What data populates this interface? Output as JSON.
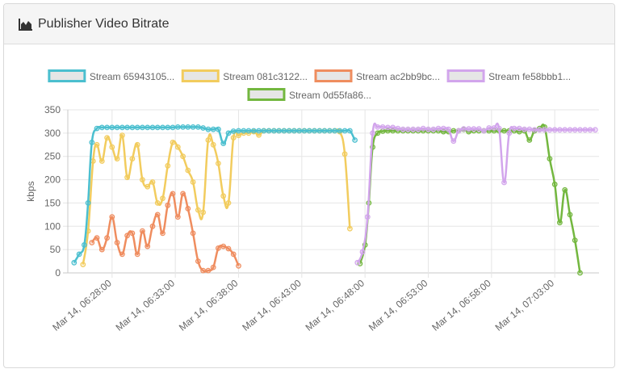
{
  "panel": {
    "title": "Publisher Video Bitrate",
    "icon": "area-chart-icon"
  },
  "chart_data": {
    "type": "line",
    "ylabel": "kbps",
    "ylim": [
      0,
      350
    ],
    "yticks": [
      0,
      50,
      100,
      150,
      200,
      250,
      300,
      350
    ],
    "xlim_minutes": [
      24.5,
      66.5
    ],
    "xticks": [
      {
        "label": "Mar 14, 06:28:00",
        "minute": 28
      },
      {
        "label": "Mar 14, 06:33:00",
        "minute": 33
      },
      {
        "label": "Mar 14, 06:38:00",
        "minute": 38
      },
      {
        "label": "Mar 14, 06:43:00",
        "minute": 43
      },
      {
        "label": "Mar 14, 06:48:00",
        "minute": 48
      },
      {
        "label": "Mar 14, 06:53:00",
        "minute": 53
      },
      {
        "label": "Mar 14, 06:58:00",
        "minute": 58
      },
      {
        "label": "Mar 14, 07:03:00",
        "minute": 63
      }
    ],
    "grid": true,
    "legend_position": "top",
    "series": [
      {
        "name": "Stream 65943105...",
        "color": "#4bbfcf",
        "points": [
          [
            25.0,
            22
          ],
          [
            25.4,
            40
          ],
          [
            25.8,
            60
          ],
          [
            26.1,
            150
          ],
          [
            26.4,
            280
          ],
          [
            26.8,
            310
          ],
          [
            27.2,
            312
          ],
          [
            27.6,
            312
          ],
          [
            28.0,
            312
          ],
          [
            28.4,
            312
          ],
          [
            28.8,
            312
          ],
          [
            29.2,
            312
          ],
          [
            29.6,
            312
          ],
          [
            30.0,
            312
          ],
          [
            30.4,
            312
          ],
          [
            30.8,
            312
          ],
          [
            31.2,
            312
          ],
          [
            31.6,
            312
          ],
          [
            32.0,
            312
          ],
          [
            32.4,
            312
          ],
          [
            32.8,
            312
          ],
          [
            33.2,
            313
          ],
          [
            33.6,
            313
          ],
          [
            34.0,
            313
          ],
          [
            34.4,
            313
          ],
          [
            34.8,
            313
          ],
          [
            35.2,
            311
          ],
          [
            35.6,
            308
          ],
          [
            36.0,
            308
          ],
          [
            36.4,
            308
          ],
          [
            36.8,
            278
          ],
          [
            37.2,
            300
          ],
          [
            37.6,
            304
          ],
          [
            38.0,
            305
          ],
          [
            38.4,
            305
          ],
          [
            38.8,
            305
          ],
          [
            39.2,
            305
          ],
          [
            39.6,
            305
          ],
          [
            40.0,
            305
          ],
          [
            40.4,
            305
          ],
          [
            40.8,
            305
          ],
          [
            41.2,
            305
          ],
          [
            41.6,
            305
          ],
          [
            42.0,
            305
          ],
          [
            42.4,
            305
          ],
          [
            42.8,
            305
          ],
          [
            43.2,
            305
          ],
          [
            43.6,
            305
          ],
          [
            44.0,
            305
          ],
          [
            44.4,
            305
          ],
          [
            44.8,
            305
          ],
          [
            45.2,
            305
          ],
          [
            45.6,
            305
          ],
          [
            46.0,
            305
          ],
          [
            46.4,
            305
          ],
          [
            46.8,
            305
          ],
          [
            47.2,
            285
          ]
        ]
      },
      {
        "name": "Stream 081c3122...",
        "color": "#f2cc5e",
        "points": [
          [
            25.7,
            18
          ],
          [
            26.1,
            90
          ],
          [
            26.5,
            240
          ],
          [
            26.8,
            275
          ],
          [
            27.2,
            240
          ],
          [
            27.6,
            290
          ],
          [
            28.0,
            270
          ],
          [
            28.4,
            245
          ],
          [
            28.8,
            295
          ],
          [
            29.2,
            205
          ],
          [
            29.6,
            245
          ],
          [
            30.0,
            275
          ],
          [
            30.4,
            200
          ],
          [
            30.8,
            185
          ],
          [
            31.2,
            195
          ],
          [
            31.6,
            150
          ],
          [
            32.0,
            160
          ],
          [
            32.4,
            230
          ],
          [
            32.8,
            280
          ],
          [
            33.2,
            270
          ],
          [
            33.6,
            250
          ],
          [
            34.0,
            220
          ],
          [
            34.4,
            195
          ],
          [
            34.8,
            135
          ],
          [
            35.2,
            130
          ],
          [
            35.6,
            285
          ],
          [
            36.0,
            275
          ],
          [
            36.4,
            235
          ],
          [
            36.8,
            165
          ],
          [
            37.2,
            150
          ],
          [
            37.6,
            290
          ],
          [
            38.0,
            295
          ],
          [
            38.4,
            300
          ],
          [
            38.8,
            300
          ],
          [
            39.2,
            303
          ],
          [
            39.6,
            296
          ],
          [
            40.0,
            305
          ],
          [
            40.4,
            305
          ],
          [
            40.8,
            305
          ],
          [
            41.2,
            305
          ],
          [
            41.6,
            305
          ],
          [
            42.0,
            305
          ],
          [
            42.4,
            305
          ],
          [
            42.8,
            305
          ],
          [
            43.2,
            305
          ],
          [
            43.6,
            305
          ],
          [
            44.0,
            305
          ],
          [
            44.4,
            305
          ],
          [
            44.8,
            305
          ],
          [
            45.2,
            305
          ],
          [
            45.6,
            305
          ],
          [
            46.0,
            303
          ],
          [
            46.4,
            255
          ],
          [
            46.8,
            95
          ]
        ]
      },
      {
        "name": "Stream ac2bb9bc...",
        "color": "#ef8d5f",
        "points": [
          [
            26.4,
            65
          ],
          [
            26.8,
            75
          ],
          [
            27.2,
            50
          ],
          [
            27.6,
            75
          ],
          [
            28.0,
            120
          ],
          [
            28.4,
            65
          ],
          [
            28.8,
            40
          ],
          [
            29.2,
            80
          ],
          [
            29.6,
            85
          ],
          [
            30.0,
            40
          ],
          [
            30.4,
            90
          ],
          [
            30.8,
            57
          ],
          [
            31.2,
            100
          ],
          [
            31.6,
            125
          ],
          [
            32.0,
            85
          ],
          [
            32.4,
            145
          ],
          [
            32.8,
            170
          ],
          [
            33.2,
            120
          ],
          [
            33.6,
            170
          ],
          [
            34.0,
            138
          ],
          [
            34.4,
            85
          ],
          [
            34.8,
            25
          ],
          [
            35.2,
            5
          ],
          [
            35.6,
            5
          ],
          [
            36.0,
            12
          ],
          [
            36.4,
            53
          ],
          [
            36.8,
            57
          ],
          [
            37.2,
            52
          ],
          [
            37.6,
            40
          ],
          [
            38.0,
            15
          ]
        ]
      },
      {
        "name": "Stream fe58bbb1...",
        "color": "#d2a5ec",
        "points": [
          [
            47.4,
            22
          ],
          [
            47.8,
            45
          ],
          [
            48.2,
            120
          ],
          [
            48.6,
            300
          ],
          [
            49.0,
            313
          ],
          [
            49.4,
            313
          ],
          [
            49.8,
            312
          ],
          [
            50.2,
            312
          ],
          [
            50.6,
            310
          ],
          [
            51.0,
            308
          ],
          [
            51.4,
            308
          ],
          [
            51.8,
            308
          ],
          [
            52.2,
            308
          ],
          [
            52.6,
            310
          ],
          [
            53.0,
            308
          ],
          [
            53.4,
            308
          ],
          [
            53.8,
            310
          ],
          [
            54.2,
            310
          ],
          [
            54.6,
            308
          ],
          [
            55.0,
            283
          ],
          [
            55.4,
            305
          ],
          [
            55.8,
            309
          ],
          [
            56.2,
            309
          ],
          [
            56.6,
            309
          ],
          [
            57.0,
            309
          ],
          [
            57.4,
            305
          ],
          [
            57.8,
            311
          ],
          [
            58.2,
            311
          ],
          [
            58.6,
            310
          ],
          [
            59.0,
            194
          ],
          [
            59.4,
            300
          ],
          [
            59.8,
            310
          ],
          [
            60.2,
            310
          ],
          [
            60.6,
            308
          ],
          [
            61.0,
            308
          ],
          [
            61.4,
            307
          ],
          [
            61.8,
            307
          ],
          [
            62.2,
            307
          ],
          [
            62.6,
            307
          ],
          [
            63.0,
            307
          ],
          [
            63.4,
            307
          ],
          [
            63.8,
            307
          ],
          [
            64.2,
            307
          ],
          [
            64.6,
            307
          ],
          [
            65.0,
            307
          ],
          [
            65.4,
            307
          ],
          [
            65.8,
            307
          ],
          [
            66.2,
            307
          ]
        ]
      },
      {
        "name": "Stream 0d55fa86...",
        "color": "#73b73f",
        "points": [
          [
            47.6,
            20
          ],
          [
            48.0,
            60
          ],
          [
            48.3,
            150
          ],
          [
            48.6,
            270
          ],
          [
            49.0,
            300
          ],
          [
            49.4,
            304
          ],
          [
            49.8,
            305
          ],
          [
            50.2,
            305
          ],
          [
            50.6,
            305
          ],
          [
            51.0,
            305
          ],
          [
            51.4,
            305
          ],
          [
            51.8,
            305
          ],
          [
            52.2,
            305
          ],
          [
            52.6,
            305
          ],
          [
            53.0,
            305
          ],
          [
            53.4,
            305
          ],
          [
            53.8,
            305
          ],
          [
            54.2,
            303
          ],
          [
            54.6,
            303
          ],
          [
            55.0,
            305
          ],
          [
            55.4,
            305
          ],
          [
            55.8,
            308
          ],
          [
            56.2,
            303
          ],
          [
            56.6,
            305
          ],
          [
            57.0,
            305
          ],
          [
            57.4,
            305
          ],
          [
            57.8,
            305
          ],
          [
            58.2,
            305
          ],
          [
            58.6,
            305
          ],
          [
            59.0,
            305
          ],
          [
            59.4,
            305
          ],
          [
            59.8,
            305
          ],
          [
            60.2,
            303
          ],
          [
            60.6,
            305
          ],
          [
            61.0,
            285
          ],
          [
            61.4,
            305
          ],
          [
            61.8,
            310
          ],
          [
            62.2,
            313
          ],
          [
            62.6,
            245
          ],
          [
            63.0,
            190
          ],
          [
            63.4,
            108
          ],
          [
            63.8,
            178
          ],
          [
            64.2,
            125
          ],
          [
            64.6,
            70
          ],
          [
            65.0,
            0
          ]
        ]
      }
    ]
  }
}
